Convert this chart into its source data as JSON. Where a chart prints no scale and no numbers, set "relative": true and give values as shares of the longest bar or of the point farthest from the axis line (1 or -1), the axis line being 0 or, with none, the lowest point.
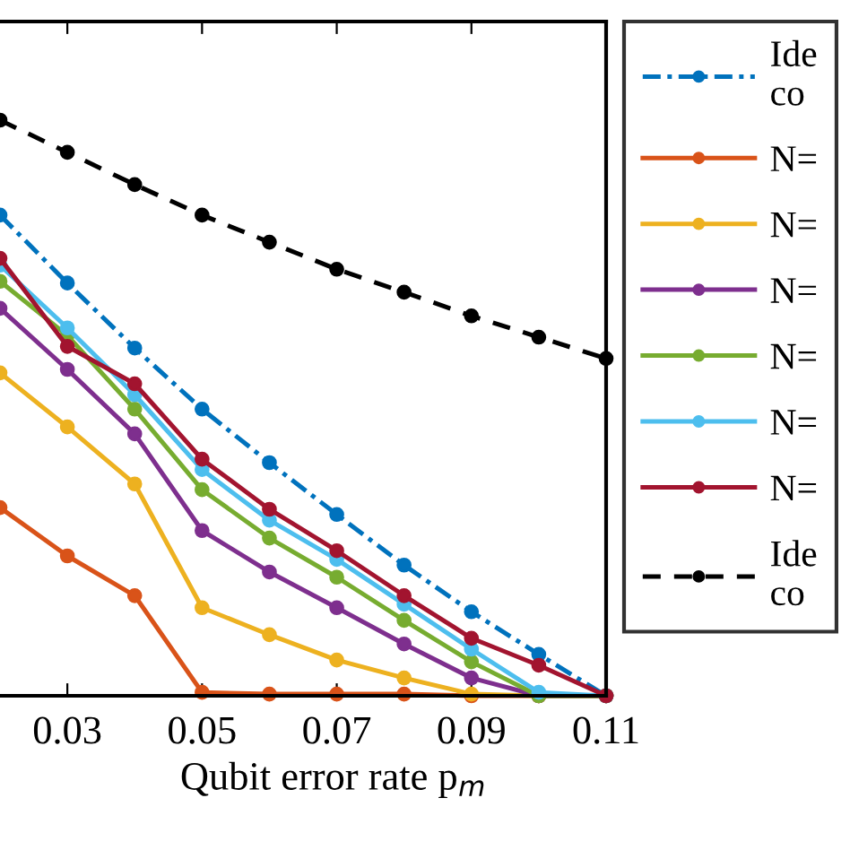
{
  "chart_data": {
    "type": "line",
    "relative": true,
    "xlabel": "Qubit error rate p$_{m}$",
    "x": [
      0.02,
      0.03,
      0.04,
      0.05,
      0.06,
      0.07,
      0.08,
      0.09,
      0.1,
      0.11
    ],
    "xlim": [
      0.02,
      0.11
    ],
    "xticks": [
      0.03,
      0.05,
      0.07,
      0.09,
      0.11
    ],
    "marker": "circle",
    "legend": "right",
    "grid": false,
    "tick_labels": "x",
    "series": [
      {
        "name": "Ide\nco",
        "color": "#0072bd",
        "line_style": "dashdot",
        "values": [
          0.835,
          0.717,
          0.604,
          0.498,
          0.405,
          0.315,
          0.227,
          0.146,
          0.072,
          0
        ]
      },
      {
        "name": "N=",
        "color": "#d95319",
        "line_style": "solid",
        "values": [
          0.327,
          0.243,
          0.174,
          0.006,
          0.003,
          0.003,
          0.003,
          0,
          0,
          0
        ]
      },
      {
        "name": "N=",
        "color": "#edb120",
        "line_style": "solid",
        "values": [
          0.561,
          0.467,
          0.368,
          0.153,
          0.106,
          0.062,
          0.031,
          0.003,
          0,
          0
        ]
      },
      {
        "name": "N=",
        "color": "#7e2f8e",
        "line_style": "solid",
        "values": [
          0.673,
          0.567,
          0.455,
          0.287,
          0.215,
          0.153,
          0.09,
          0.031,
          0,
          0
        ]
      },
      {
        "name": "N=",
        "color": "#77ac30",
        "line_style": "solid",
        "values": [
          0.72,
          0.626,
          0.498,
          0.358,
          0.274,
          0.206,
          0.131,
          0.059,
          0,
          0
        ]
      },
      {
        "name": "N=",
        "color": "#4dbeee",
        "line_style": "solid",
        "values": [
          0.748,
          0.639,
          0.523,
          0.393,
          0.305,
          0.237,
          0.159,
          0.081,
          0.006,
          0
        ]
      },
      {
        "name": "N=",
        "color": "#a2142f",
        "line_style": "solid",
        "values": [
          0.76,
          0.607,
          0.542,
          0.411,
          0.324,
          0.252,
          0.174,
          0.1,
          0.053,
          0
        ]
      },
      {
        "name": "Ide\nco",
        "color": "#000000",
        "line_style": "dashed",
        "values": [
          1,
          0.944,
          0.888,
          0.835,
          0.788,
          0.741,
          0.701,
          0.66,
          0.623,
          0.586
        ]
      }
    ]
  }
}
